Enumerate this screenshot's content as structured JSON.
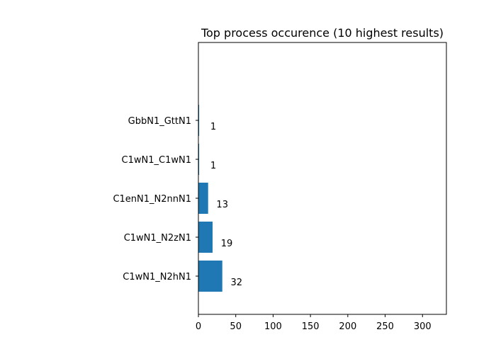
{
  "chart_data": {
    "type": "bar",
    "orientation": "horizontal",
    "title": "Top process occurence (10 highest results)",
    "xlabel": "",
    "ylabel": "",
    "categories": [
      "C1wN1_N2hN1",
      "C1wN1_N2zN1",
      "C1enN1_N2nnN1",
      "C1wN1_C1wN1",
      "GbbN1_GttN1"
    ],
    "values": [
      32,
      19,
      13,
      1,
      1
    ],
    "data_labels": [
      "32",
      "19",
      "13",
      "1",
      "1"
    ],
    "xlim": [
      0,
      332
    ],
    "xticks": [
      0,
      50,
      100,
      150,
      200,
      250,
      300
    ],
    "xtick_labels": [
      "0",
      "50",
      "100",
      "150",
      "200",
      "250",
      "300"
    ],
    "grid": false,
    "bar_color": "#1f77b4"
  }
}
